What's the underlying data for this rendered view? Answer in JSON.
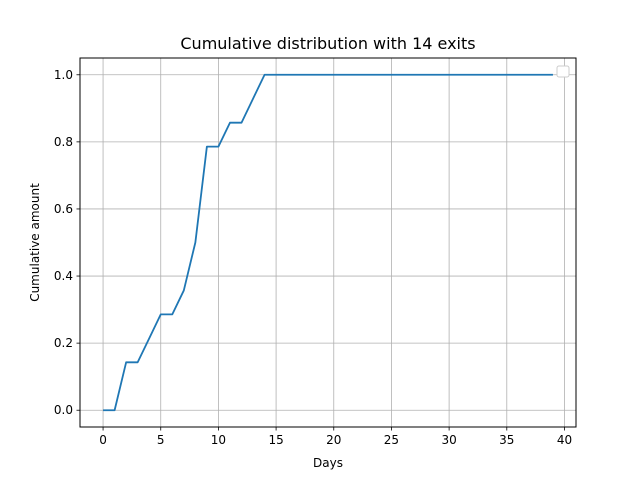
{
  "chart_data": {
    "type": "line",
    "title": "Cumulative distribution with 14 exits",
    "xlabel": "Days",
    "ylabel": "Cumulative amount",
    "xlim": [
      -2,
      41
    ],
    "ylim": [
      -0.05,
      1.05
    ],
    "x_ticks": [
      0,
      5,
      10,
      15,
      20,
      25,
      30,
      35,
      40
    ],
    "y_ticks": [
      0.0,
      0.2,
      0.4,
      0.6,
      0.8,
      1.0
    ],
    "x_tick_labels": [
      "0",
      "5",
      "10",
      "15",
      "20",
      "25",
      "30",
      "35",
      "40"
    ],
    "y_tick_labels": [
      "0.0",
      "0.2",
      "0.4",
      "0.6",
      "0.8",
      "1.0"
    ],
    "grid": true,
    "legend": "upper right (empty)",
    "series": [
      {
        "color": "#1f77b4",
        "x": [
          0,
          1,
          2,
          3,
          4,
          5,
          6,
          7,
          8,
          9,
          10,
          11,
          12,
          13,
          14,
          15,
          16,
          17,
          18,
          19,
          20,
          21,
          22,
          23,
          24,
          25,
          26,
          27,
          28,
          29,
          30,
          31,
          32,
          33,
          34,
          35,
          36,
          37,
          38,
          39
        ],
        "y": [
          0,
          0,
          0.1429,
          0.1429,
          0.2143,
          0.2857,
          0.2857,
          0.3571,
          0.5,
          0.7857,
          0.7857,
          0.8571,
          0.8571,
          0.9286,
          1,
          1,
          1,
          1,
          1,
          1,
          1,
          1,
          1,
          1,
          1,
          1,
          1,
          1,
          1,
          1,
          1,
          1,
          1,
          1,
          1,
          1,
          1,
          1,
          1,
          1
        ]
      }
    ]
  }
}
